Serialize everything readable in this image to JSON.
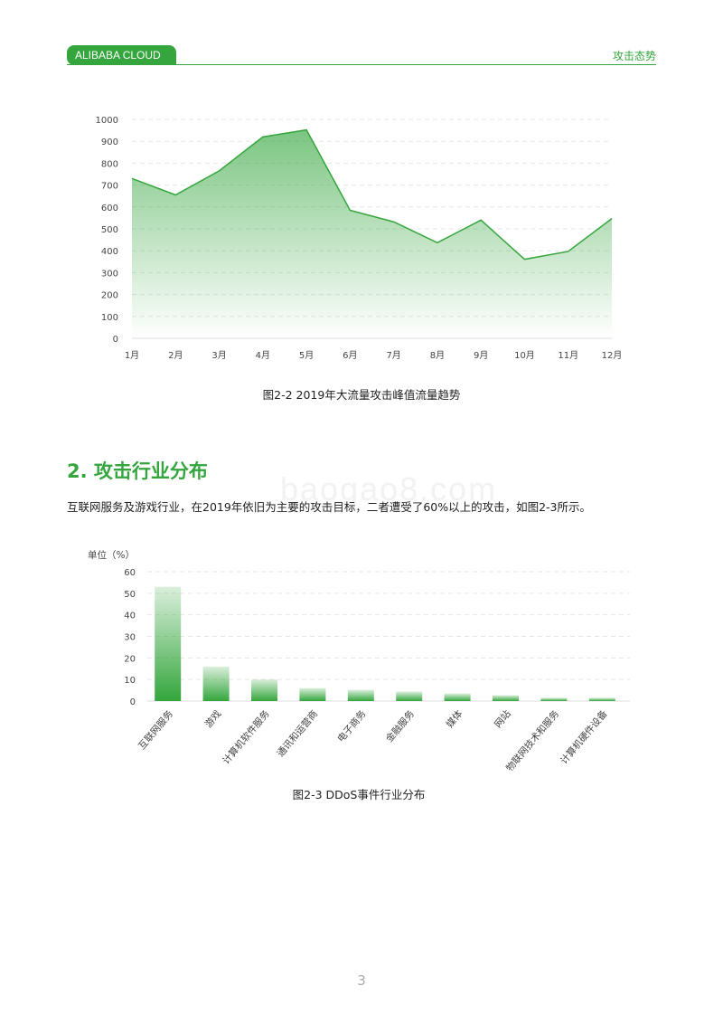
{
  "header": {
    "brand": "ALIBABA CLOUD",
    "section": "攻击态势",
    "accent": "#34a63d"
  },
  "watermark": "baogao8.com",
  "figure1": {
    "caption": "图2-2  2019年大流量攻击峰值流量趋势"
  },
  "section": {
    "title": "2. 攻击行业分布",
    "paragraph": "互联网服务及游戏行业，在2019年依旧为主要的攻击目标，二者遭受了60%以上的攻击，如图2-3所示。"
  },
  "figure2": {
    "caption": "图2-3  DDoS事件行业分布"
  },
  "page_number": "3",
  "chart_data": [
    {
      "type": "area",
      "categories": [
        "1月",
        "2月",
        "3月",
        "4月",
        "5月",
        "6月",
        "7月",
        "8月",
        "9月",
        "10月",
        "11月",
        "12月"
      ],
      "values": [
        730,
        655,
        765,
        920,
        952,
        585,
        532,
        437,
        540,
        361,
        397,
        547
      ],
      "yticks": [
        "0",
        "100",
        "200",
        "300",
        "400",
        "500",
        "600",
        "700",
        "800",
        "900",
        "1000"
      ],
      "ylim": [
        0,
        1000
      ],
      "grid": true,
      "color": "#34a63d"
    },
    {
      "type": "bar",
      "ylabel": "单位（%）",
      "categories": [
        "互联网服务",
        "游戏",
        "计算机软件服务",
        "通讯和运营商",
        "电子商务",
        "金融服务",
        "媒体",
        "网站",
        "物联网技术和服务",
        "计算机硬件设备"
      ],
      "values": [
        53,
        16,
        10,
        6,
        5.2,
        4.4,
        3.5,
        2.7,
        1.5,
        1.5
      ],
      "yticks": [
        "0",
        "10",
        "20",
        "30",
        "40",
        "50",
        "60"
      ],
      "ylim": [
        0,
        60
      ],
      "grid": true,
      "color": "#34a63d"
    }
  ]
}
